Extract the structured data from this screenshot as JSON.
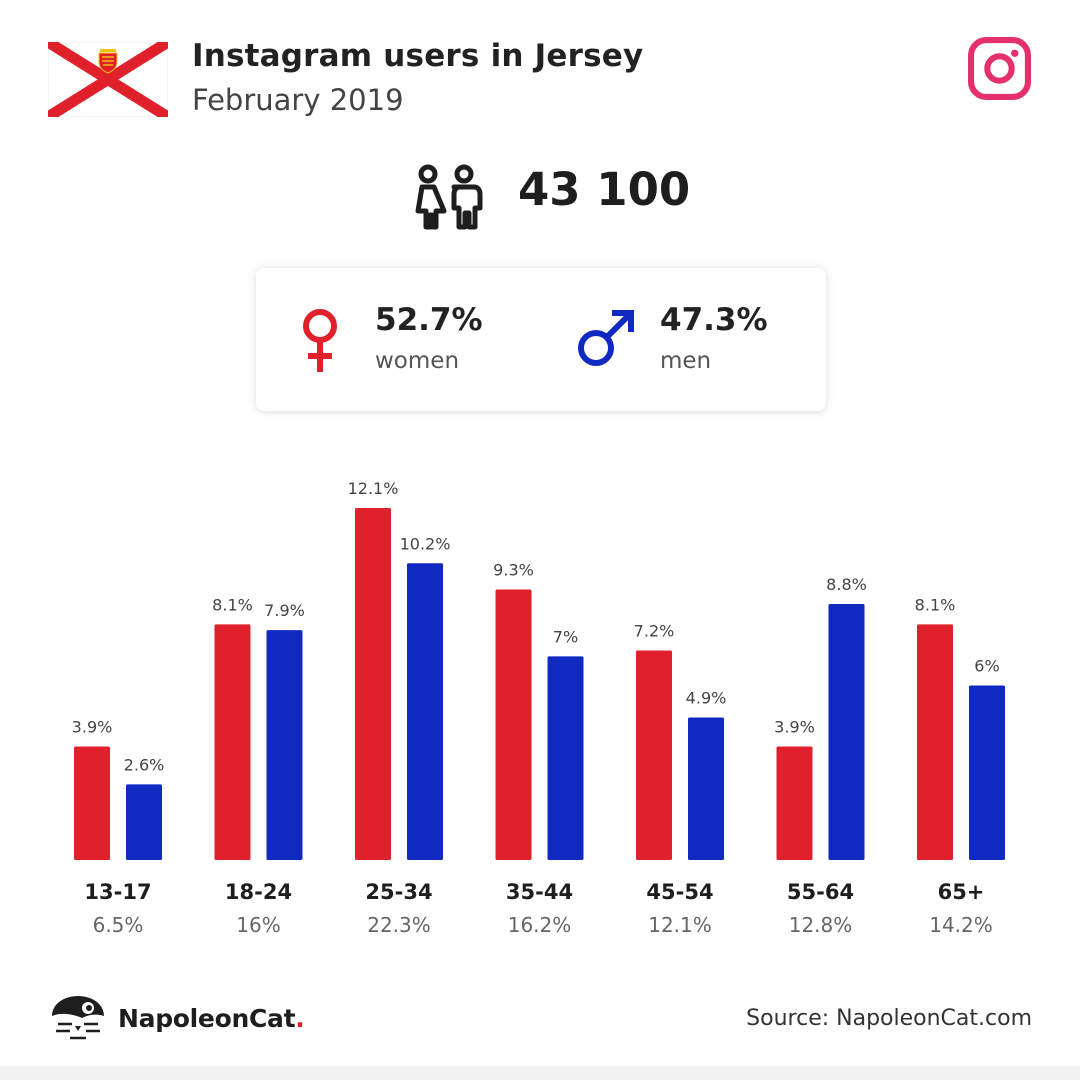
{
  "header": {
    "title": "Instagram users in Jersey",
    "subtitle": "February 2019"
  },
  "total_users": "43 100",
  "gender": {
    "women_value": "52.7%",
    "women_label": "women",
    "men_value": "47.3%",
    "men_label": "men"
  },
  "colors": {
    "women": "#e0212b",
    "men": "#1029c1",
    "instagram": "#e4306c"
  },
  "icons": [
    "jersey-flag-icon",
    "instagram-logo-icon",
    "people-icon",
    "female-symbol-icon",
    "male-symbol-icon",
    "napoleoncat-logo-icon"
  ],
  "chart_data": {
    "type": "bar",
    "categories": [
      "13-17",
      "18-24",
      "25-34",
      "35-44",
      "45-54",
      "55-64",
      "65+"
    ],
    "category_totals": [
      "6.5%",
      "16%",
      "22.3%",
      "16.2%",
      "12.1%",
      "12.8%",
      "14.2%"
    ],
    "series": [
      {
        "values": [
          3.9,
          8.1,
          12.1,
          9.3,
          7.2,
          3.9,
          8.1
        ],
        "labels": [
          "3.9%",
          "8.1%",
          "12.1%",
          "9.3%",
          "7.2%",
          "3.9%",
          "8.1%"
        ],
        "color": "#e0212b"
      },
      {
        "values": [
          2.6,
          7.9,
          10.2,
          7,
          4.9,
          8.8,
          6
        ],
        "labels": [
          "2.6%",
          "7.9%",
          "10.2%",
          "7%",
          "4.9%",
          "8.8%",
          "6%"
        ],
        "color": "#1029c1"
      }
    ],
    "ylim": [
      0,
      12.1
    ],
    "grid": false,
    "legend": "none"
  },
  "footer": {
    "brand": "NapoleonCat",
    "brand_dot": ".",
    "source": "Source: NapoleonCat.com"
  }
}
